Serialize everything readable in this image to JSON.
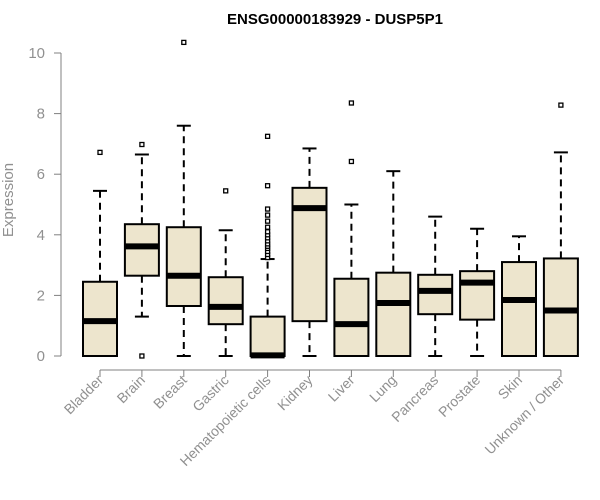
{
  "chart_data": {
    "type": "box",
    "title": "ENSG00000183929 - DUSP5P1",
    "xlabel": "",
    "ylabel": "Expression",
    "ylim": [
      0,
      10
    ],
    "yticks": [
      0,
      2,
      4,
      6,
      8,
      10
    ],
    "colors": {
      "box_fill": "#ede5cd",
      "stroke": "#000000",
      "axis": "#808080",
      "tick_text": "#909090"
    },
    "categories": [
      "Bladder",
      "Brain",
      "Breast",
      "Gastric",
      "Hematopoietic cells",
      "Kidney",
      "Liver",
      "Lung",
      "Pancreas",
      "Prostate",
      "Skin",
      "Unknown / Other"
    ],
    "boxes": [
      {
        "name": "Bladder",
        "whisker_low": 0.0,
        "q1": 0.0,
        "median": 1.15,
        "q3": 2.45,
        "whisker_high": 5.45,
        "outliers": [
          6.72
        ]
      },
      {
        "name": "Brain",
        "whisker_low": 1.3,
        "q1": 2.65,
        "median": 3.62,
        "q3": 4.35,
        "whisker_high": 6.65,
        "outliers": [
          0.0,
          6.98
        ]
      },
      {
        "name": "Breast",
        "whisker_low": 0.0,
        "q1": 1.65,
        "median": 2.65,
        "q3": 4.25,
        "whisker_high": 7.6,
        "outliers": [
          10.35
        ]
      },
      {
        "name": "Gastric",
        "whisker_low": 0.0,
        "q1": 1.05,
        "median": 1.62,
        "q3": 2.6,
        "whisker_high": 4.15,
        "outliers": [
          5.45
        ]
      },
      {
        "name": "Hematopoietic cells",
        "whisker_low": 0.0,
        "q1": 0.0,
        "median": 0.02,
        "q3": 1.3,
        "whisker_high": 3.2,
        "outliers": [
          3.25,
          3.35,
          3.45,
          3.55,
          3.62,
          3.7,
          3.8,
          3.9,
          4.0,
          4.1,
          4.25,
          4.45,
          4.65,
          4.85,
          5.62,
          7.25
        ]
      },
      {
        "name": "Kidney",
        "whisker_low": 0.0,
        "q1": 1.15,
        "median": 4.88,
        "q3": 5.55,
        "whisker_high": 6.85,
        "outliers": []
      },
      {
        "name": "Liver",
        "whisker_low": 0.0,
        "q1": 0.0,
        "median": 1.05,
        "q3": 2.55,
        "whisker_high": 5.0,
        "outliers": [
          6.42,
          8.35
        ]
      },
      {
        "name": "Lung",
        "whisker_low": 0.0,
        "q1": 0.0,
        "median": 1.75,
        "q3": 2.75,
        "whisker_high": 6.1,
        "outliers": []
      },
      {
        "name": "Pancreas",
        "whisker_low": 0.0,
        "q1": 1.38,
        "median": 2.15,
        "q3": 2.68,
        "whisker_high": 4.6,
        "outliers": []
      },
      {
        "name": "Prostate",
        "whisker_low": 0.0,
        "q1": 1.2,
        "median": 2.42,
        "q3": 2.8,
        "whisker_high": 4.2,
        "outliers": []
      },
      {
        "name": "Skin",
        "whisker_low": 0.0,
        "q1": 0.0,
        "median": 1.85,
        "q3": 3.1,
        "whisker_high": 3.95,
        "outliers": []
      },
      {
        "name": "Unknown / Other",
        "whisker_low": 0.0,
        "q1": 0.0,
        "median": 1.5,
        "q3": 3.22,
        "whisker_high": 6.72,
        "outliers": [
          8.28
        ]
      }
    ]
  }
}
